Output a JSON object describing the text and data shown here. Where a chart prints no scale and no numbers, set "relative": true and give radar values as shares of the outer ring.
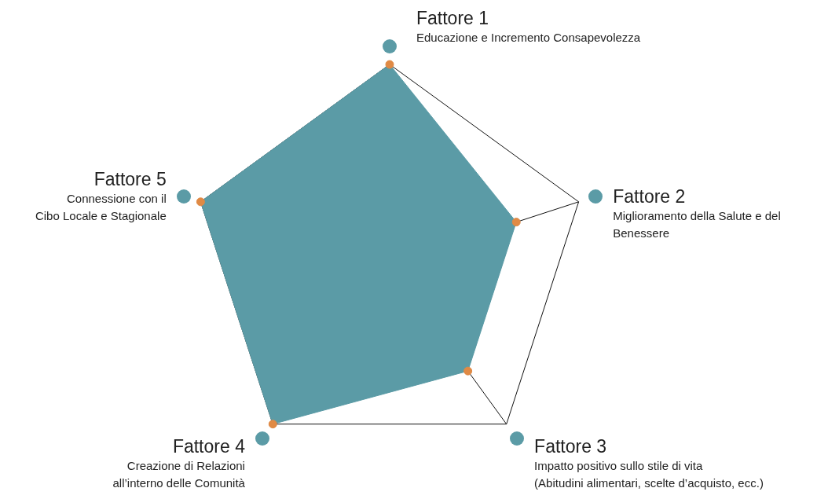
{
  "chart_data": {
    "type": "radar",
    "relative": true,
    "categories": [
      "Fattore 1",
      "Fattore 2",
      "Fattore 3",
      "Fattore 4",
      "Fattore 5"
    ],
    "series": [
      {
        "color": "#5b9ba6",
        "values": [
          1,
          0.67,
          0.67,
          1,
          1
        ]
      }
    ],
    "annotations": [
      "Educazione e Incremento Consapevolezza",
      "Miglioramento della Salute e del\nBenessere",
      "Impatto positivo sullo stile di vita\n(Abitudini alimentari, scelte d’acquisto, ecc.)",
      "Creazione di Relazioni\nall’interno delle Comunità",
      "Connessione con il\nCibo Locale e Stagionale"
    ],
    "marker": "circle",
    "grid": true,
    "legend": false
  }
}
